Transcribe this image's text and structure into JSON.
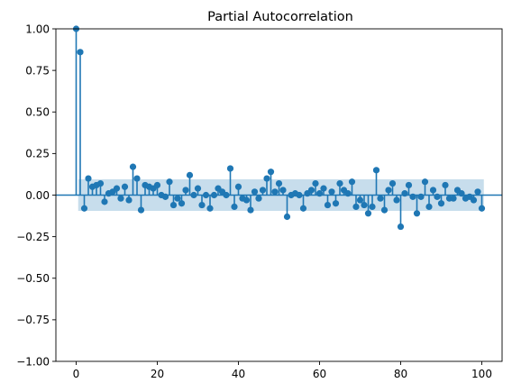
{
  "chart_data": {
    "type": "stem",
    "title": "Partial Autocorrelation",
    "xlabel": "",
    "ylabel": "",
    "xlim": [
      -5,
      105
    ],
    "ylim": [
      -1.0,
      1.0
    ],
    "x_ticks": [
      0,
      20,
      40,
      60,
      80,
      100
    ],
    "x_tick_labels": [
      "0",
      "20",
      "40",
      "60",
      "80",
      "100"
    ],
    "y_ticks": [
      1.0,
      0.75,
      0.5,
      0.25,
      0.0,
      -0.25,
      -0.5,
      -0.75,
      -1.0
    ],
    "y_tick_labels": [
      "1.00",
      "0.75",
      "0.50",
      "0.25",
      "0.00",
      "−0.25",
      "−0.50",
      "−0.75",
      "−1.00"
    ],
    "grid": false,
    "confidence_band": {
      "lower": -0.095,
      "upper": 0.095,
      "from_lag": 1
    },
    "lags": [
      0,
      1,
      2,
      3,
      4,
      5,
      6,
      7,
      8,
      9,
      10,
      11,
      12,
      13,
      14,
      15,
      16,
      17,
      18,
      19,
      20,
      21,
      22,
      23,
      24,
      25,
      26,
      27,
      28,
      29,
      30,
      31,
      32,
      33,
      34,
      35,
      36,
      37,
      38,
      39,
      40,
      41,
      42,
      43,
      44,
      45,
      46,
      47,
      48,
      49,
      50,
      51,
      52,
      53,
      54,
      55,
      56,
      57,
      58,
      59,
      60,
      61,
      62,
      63,
      64,
      65,
      66,
      67,
      68,
      69,
      70,
      71,
      72,
      73,
      74,
      75,
      76,
      77,
      78,
      79,
      80,
      81,
      82,
      83,
      84,
      85,
      86,
      87,
      88,
      89,
      90,
      91,
      92,
      93,
      94,
      95,
      96,
      97,
      98,
      99,
      100
    ],
    "values": [
      1.0,
      0.86,
      -0.08,
      0.1,
      0.05,
      0.06,
      0.07,
      -0.04,
      0.01,
      0.02,
      0.04,
      -0.02,
      0.05,
      -0.03,
      0.17,
      0.1,
      -0.09,
      0.06,
      0.05,
      0.04,
      0.06,
      0.0,
      -0.01,
      0.08,
      -0.06,
      -0.02,
      -0.05,
      0.03,
      0.12,
      0.0,
      0.04,
      -0.06,
      0.0,
      -0.08,
      0.0,
      0.04,
      0.02,
      0.0,
      0.16,
      -0.07,
      0.05,
      -0.02,
      -0.03,
      -0.09,
      0.02,
      -0.02,
      0.03,
      0.1,
      0.14,
      0.02,
      0.07,
      0.03,
      -0.13,
      0.0,
      0.01,
      0.0,
      -0.08,
      0.01,
      0.03,
      0.07,
      0.01,
      0.04,
      -0.06,
      0.02,
      -0.05,
      0.07,
      0.03,
      0.01,
      0.08,
      -0.07,
      -0.03,
      -0.06,
      -0.11,
      -0.07,
      0.15,
      -0.02,
      -0.09,
      0.03,
      0.07,
      -0.03,
      -0.19,
      0.01,
      0.06,
      -0.01,
      -0.11,
      -0.01,
      0.08,
      -0.07,
      0.03,
      -0.01,
      -0.05,
      0.06,
      -0.02,
      -0.02,
      0.03,
      0.01,
      -0.02,
      -0.01,
      -0.03,
      0.02,
      -0.08
    ],
    "colors": {
      "marker": "#1f77b4",
      "band": "#1f77b4",
      "zero_line": "#1f77b4",
      "axes": "#000000"
    }
  }
}
